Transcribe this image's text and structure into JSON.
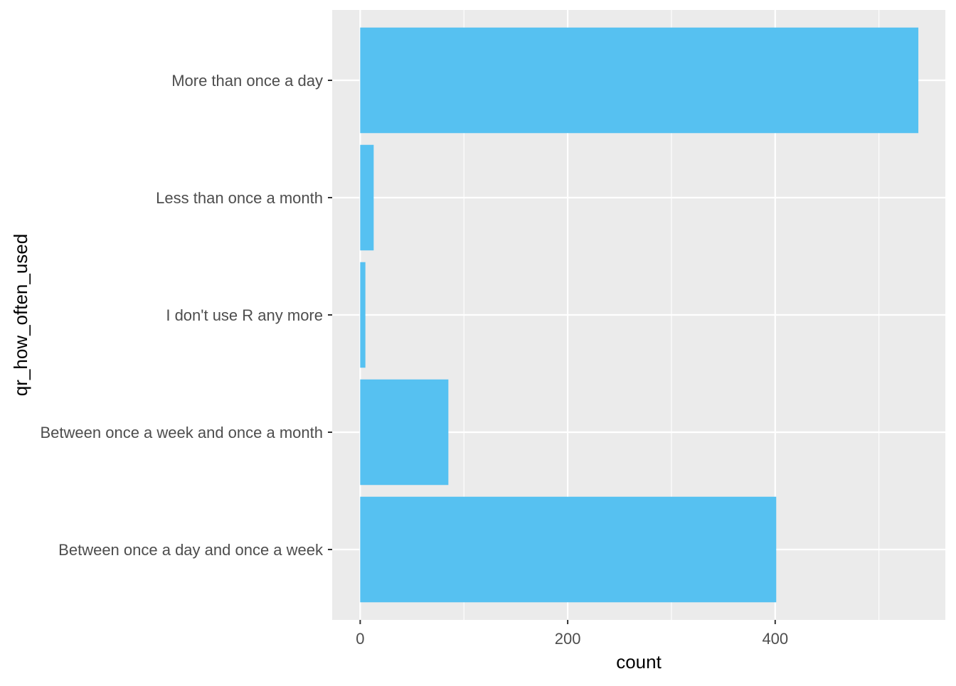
{
  "chart_data": {
    "type": "bar",
    "orientation": "horizontal",
    "categories": [
      "Between once a day and once a week",
      "Between once a week and once a month",
      "I don't use R any more",
      "Less than once a month",
      "More than once a day"
    ],
    "values": [
      401,
      85,
      5,
      13,
      538
    ],
    "xlabel": "count",
    "ylabel": "qr_how_often_used",
    "xlim": [
      -27,
      564
    ],
    "xticks": [
      0,
      200,
      400
    ],
    "xtick_labels": [
      "0",
      "200",
      "400"
    ],
    "grid": true,
    "colors": {
      "bar": "#56C1F1",
      "panel": "#EBEBEB",
      "grid": "#FFFFFF",
      "text": "#4D4D4D"
    }
  }
}
